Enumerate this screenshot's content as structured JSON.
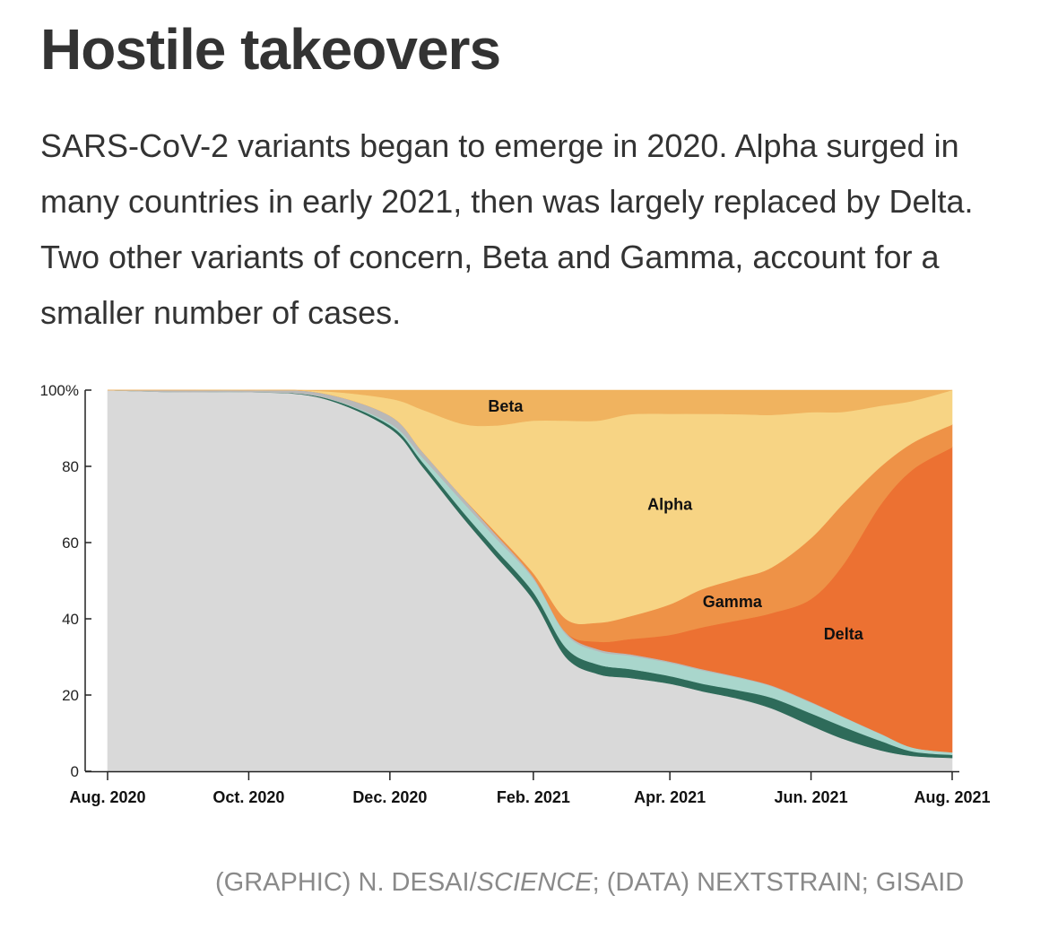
{
  "title": "Hostile takeovers",
  "subtitle": "SARS-CoV-2 variants began to emerge in 2020. Alpha surged in many countries in early 2021, then was largely replaced by Delta. Two other variants of concern, Beta and Gamma, account for a smaller number of cases.",
  "credit": {
    "prefix": "(GRAPHIC) N. DESAI/",
    "publication": "SCIENCE",
    "suffix": "; (DATA) NEXTSTRAIN; GISAID"
  },
  "chart_data": {
    "type": "area",
    "stacked": true,
    "normalized_to_percent": true,
    "x": [
      "2020-08-01",
      "2020-09-01",
      "2020-10-01",
      "2020-11-01",
      "2020-12-01",
      "2020-12-15",
      "2021-01-01",
      "2021-01-15",
      "2021-02-01",
      "2021-02-15",
      "2021-03-01",
      "2021-03-15",
      "2021-04-01",
      "2021-04-15",
      "2021-05-01",
      "2021-05-15",
      "2021-06-01",
      "2021-06-15",
      "2021-07-01",
      "2021-07-15",
      "2021-08-01"
    ],
    "x_tick_labels": [
      "Aug. 2020",
      "Oct. 2020",
      "Dec. 2020",
      "Feb. 2021",
      "Apr. 2021",
      "Jun. 2021",
      "Aug. 2021"
    ],
    "x_tick_dates": [
      "2020-08-01",
      "2020-10-01",
      "2020-12-01",
      "2021-02-01",
      "2021-04-01",
      "2021-06-01",
      "2021-08-01"
    ],
    "y_ticks": [
      0,
      20,
      40,
      60,
      80,
      100
    ],
    "y_tick_labels": [
      "0",
      "20",
      "40",
      "60",
      "80",
      "100%"
    ],
    "ylim": [
      0,
      100
    ],
    "series": [
      {
        "name": "",
        "color": "#d9d9d9",
        "values": [
          100,
          99.5,
          99.5,
          98,
          90,
          80,
          67,
          57,
          45,
          30,
          25.5,
          24.5,
          23,
          21,
          19,
          16.5,
          12,
          8.5,
          5.5,
          4,
          3.5
        ]
      },
      {
        "name": "",
        "color": "#2e6b5a",
        "values": [
          0,
          0,
          0,
          0.3,
          0.8,
          1.2,
          1.5,
          1.7,
          2,
          2.5,
          2.5,
          2.3,
          2,
          2,
          2.2,
          2.8,
          3.2,
          3.2,
          2.5,
          1.2,
          0.8
        ]
      },
      {
        "name": "",
        "color": "#a9d6cc",
        "values": [
          0,
          0,
          0,
          0,
          0.5,
          1.2,
          2.5,
          3,
          3.5,
          3.5,
          3.5,
          3.5,
          3.5,
          3.5,
          3.3,
          3,
          2.8,
          2.5,
          1.8,
          1,
          0.7
        ]
      },
      {
        "name": "",
        "color": "#b8b8b8",
        "values": [
          0,
          0.5,
          0.5,
          1,
          2,
          1.5,
          1.2,
          1,
          0.5,
          0.5,
          0.5,
          0.4,
          0.3,
          0.3,
          0.2,
          0.2,
          0.2,
          0.1,
          0.1,
          0,
          0
        ]
      },
      {
        "name": "Delta",
        "color": "#ec7132",
        "values": [
          0,
          0,
          0,
          0,
          0,
          0,
          0,
          0,
          0,
          0,
          2,
          4,
          7,
          11,
          15,
          19,
          27,
          40,
          60,
          73,
          80
        ]
      },
      {
        "name": "Gamma",
        "color": "#ee9247",
        "values": [
          0,
          0,
          0,
          0,
          0,
          0,
          0,
          0.5,
          1,
          3.5,
          5,
          6,
          8,
          10,
          11,
          12,
          16,
          16,
          10,
          7,
          6
        ]
      },
      {
        "name": "Alpha",
        "color": "#f7d484",
        "values": [
          0,
          0,
          0,
          0.5,
          4.5,
          11,
          19,
          27.5,
          40,
          52,
          53,
          53,
          50,
          46,
          43,
          40,
          33,
          24,
          16,
          11,
          9
        ]
      },
      {
        "name": "Beta",
        "color": "#f0b35f",
        "values": [
          0,
          0,
          0,
          0.2,
          2.2,
          5.1,
          8.8,
          9.3,
          8,
          8,
          8,
          6.3,
          6.2,
          6.2,
          6.3,
          6.5,
          5.8,
          5.7,
          4.1,
          2.8,
          0
        ]
      }
    ],
    "series_labels": [
      {
        "name": "Beta",
        "date": "2021-01-20",
        "value": 95.8
      },
      {
        "name": "Alpha",
        "date": "2021-04-01",
        "value": 70
      },
      {
        "name": "Gamma",
        "date": "2021-04-28",
        "value": 44.5
      },
      {
        "name": "Delta",
        "date": "2021-06-15",
        "value": 36
      }
    ]
  }
}
